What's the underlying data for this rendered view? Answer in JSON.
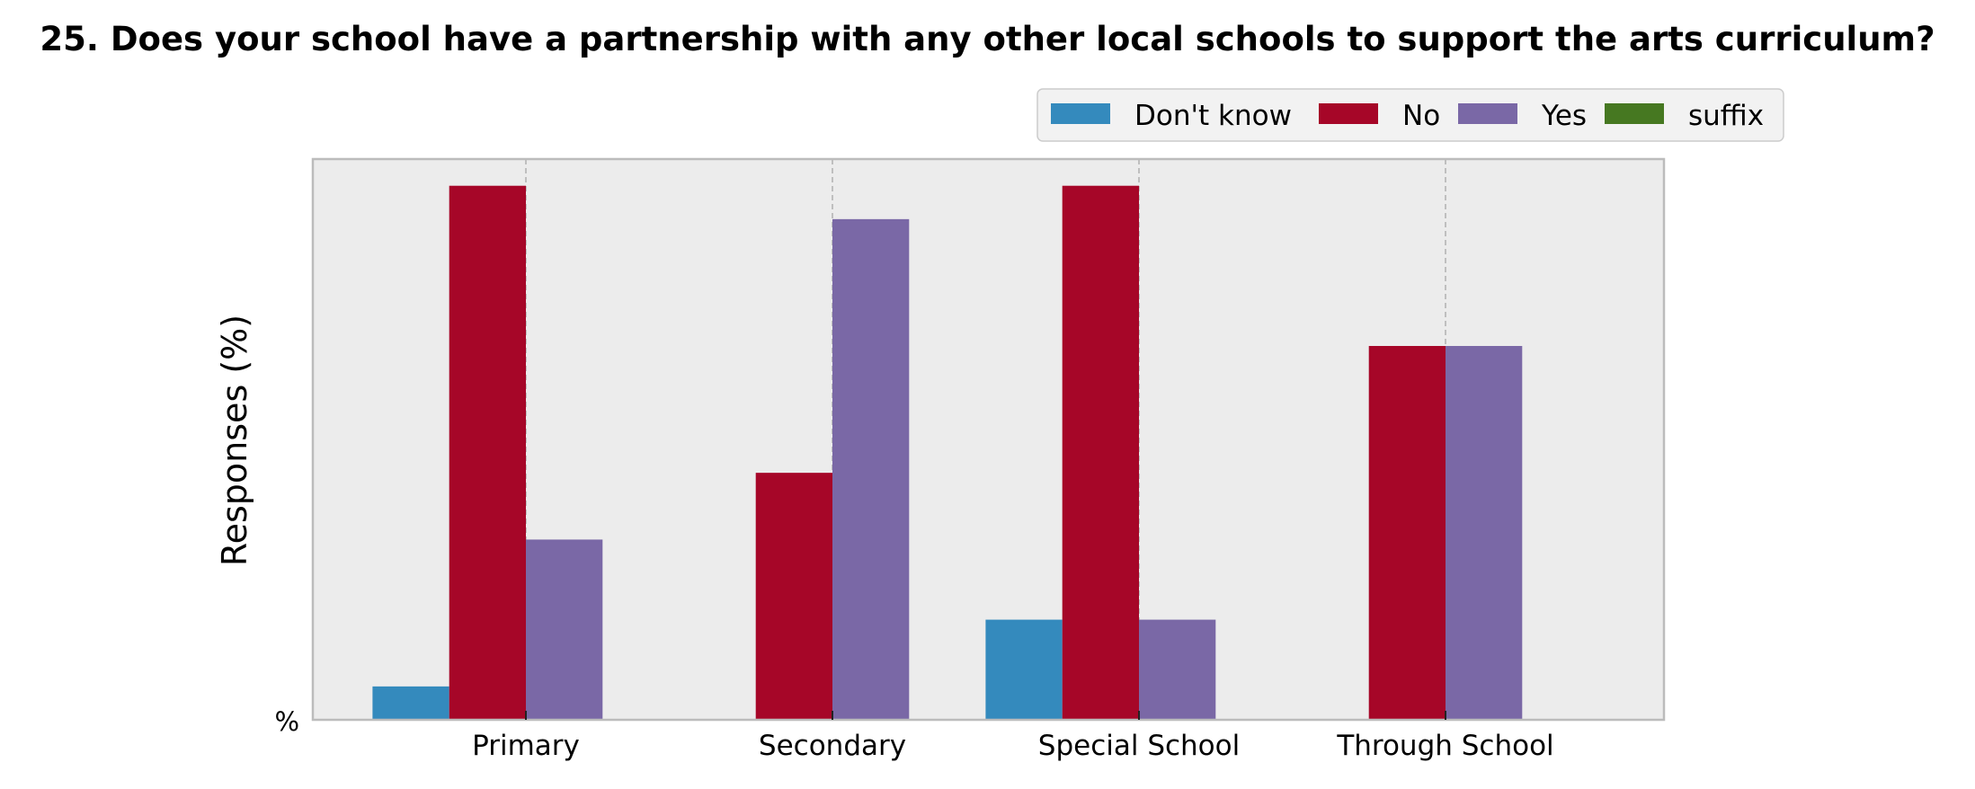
{
  "chart_data": {
    "type": "bar",
    "title": "25. Does your school have a partnership with any other local schools to support the arts curriculum?",
    "ylabel": "Responses (%)",
    "xlabel": "",
    "y_tick_label": "%",
    "categories": [
      "Primary",
      "Secondary",
      "Special School",
      "Through School"
    ],
    "series": [
      {
        "name": "Don't know",
        "color": "#348abd",
        "values": [
          5,
          0,
          15,
          0
        ]
      },
      {
        "name": "No",
        "color": "#a60628",
        "values": [
          80,
          37,
          80,
          56
        ]
      },
      {
        "name": "Yes",
        "color": "#7a68a6",
        "values": [
          27,
          75,
          15,
          56
        ]
      },
      {
        "name": "suffix",
        "color": "#467821",
        "values": [
          0,
          0,
          0,
          0
        ]
      }
    ],
    "ylim": [
      0,
      84
    ],
    "grid": "vertical",
    "legend_position": "top-right",
    "background": "#ececec"
  }
}
